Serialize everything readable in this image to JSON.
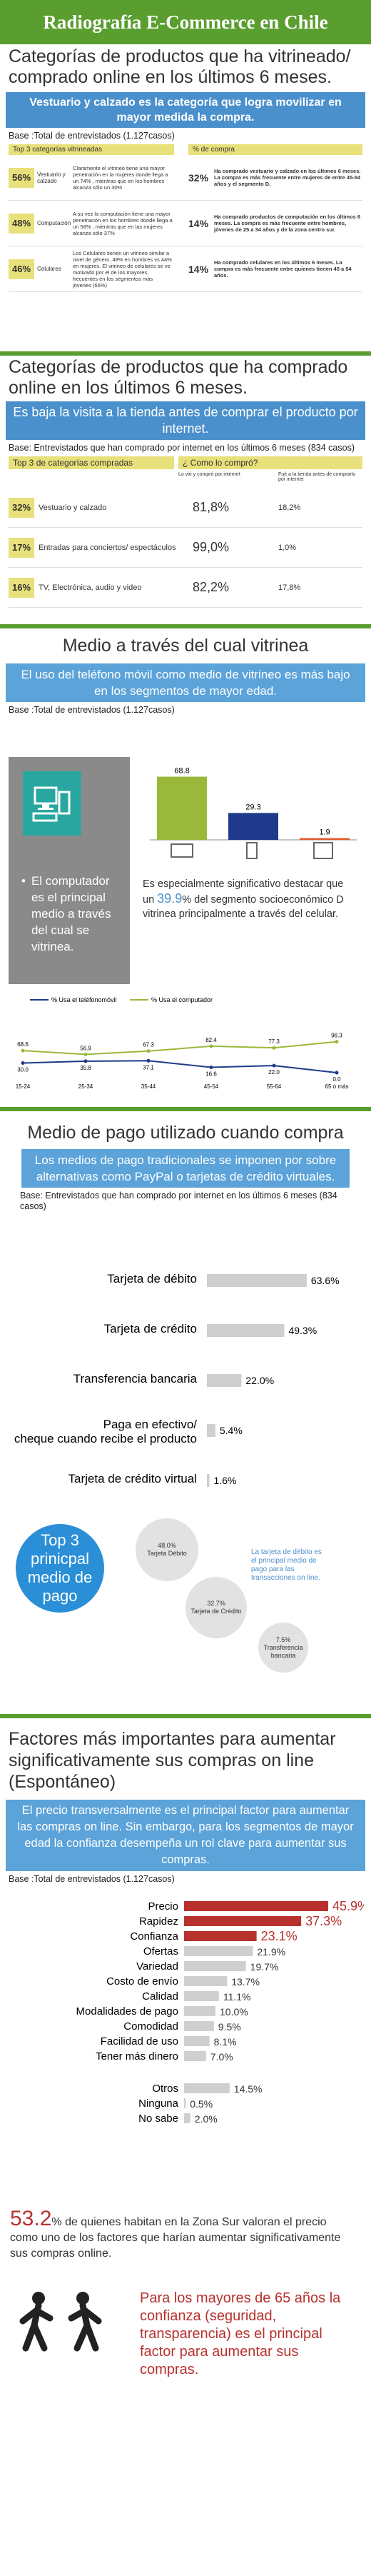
{
  "header": {
    "title": "Radiografía E-Commerce en Chile"
  },
  "s1": {
    "title": "Categorías de productos que ha vitrineado/ comprado online en los últimos 6 meses.",
    "band": "Vestuario y calzado es la categoría que logra movilizar en mayor medida la compra.",
    "base": "Base :Total de entrevistados (1.127casos)",
    "col1": "Top 3 categorías vitrineadas",
    "col2": "% de compra",
    "rows": [
      {
        "pct": "56%",
        "cat": "Vestuario y calzado",
        "desc": "Claramente el vitrineo tiene una mayor penetración en la mujeres donde llega a un 74% , mientras que en los hombres alcanza sólo un 30%",
        "buy": "32%",
        "buydesc": "Ha comprado vestuario y calzado en los últimos 6 meses. La compra es más frecuente entre mujeres de entre 45-54 años y el segmento D."
      },
      {
        "pct": "48%",
        "cat": "Computación",
        "desc": "A su vez la computación tiene una mayor penetración en los hombres donde llega a un 58% , mientras que en las mujeres alcanza sólo 37%",
        "buy": "14%",
        "buydesc": "Ha comprado productos de computación en los últimos 6 meses. La compra es más frecuente entre hombres, jóvenes de 25 a 34 años y de la zona centro sur."
      },
      {
        "pct": "46%",
        "cat": "Celulares",
        "desc": "Los Celulares tienen un vitrineo similar a nivel de género, 48% en hombres vs 44% en mujeres. El vitrineo de celulares se ve motivado por el de los mayores, frecuentes en los segmentos más jóvenes (66%)",
        "buy": "14%",
        "buydesc": "Ha comprado celulares en los últimos 6 meses. La compra es más frecuente entre quienes tienen 45 a 54 años."
      }
    ]
  },
  "s2": {
    "title": "Categorías de productos que ha comprado online en los últimos 6 meses.",
    "band": "Es baja la visita a la tienda antes de comprar el producto por internet.",
    "base": "Base: Entrevistados que han comprado por internet en los últimos 6 meses (834 casos)",
    "col1": "Top 3 de  categorías compradas",
    "col2": "¿ Como lo compró?",
    "sub1": "Lo vió y compró por internet",
    "sub2": "Fué a la tienda antes de comprarlo por internet",
    "rows": [
      {
        "pct": "32%",
        "cat": "Vestuario y calzado",
        "a": "81,8%",
        "b": "18,2%"
      },
      {
        "pct": "17%",
        "cat": "Entradas para conciertos/ espectáculos",
        "a": "99,0%",
        "b": "1,0%"
      },
      {
        "pct": "16%",
        "cat": "TV, Electrónica, audio y video",
        "a": "82,2%",
        "b": "17,8%"
      }
    ]
  },
  "s3": {
    "title": "Medio a través del cual vitrinea",
    "band": "El uso del teléfono móvil como medio de vitrineo es más bajo en los segmentos de mayor edad.",
    "base": "Base :Total de entrevistados  (1.127casos)",
    "left_text": "El computador es el principal medio a través del cual se vitrinea.",
    "note_pre": "Es especialmente significativo destacar que un ",
    "note_pct": "39.9",
    "note_post": "% del segmento socioeconómico D  vitrinea principalmente  a través del celular."
  },
  "s4": {
    "title": "Medio de pago utilizado cuando compra",
    "band": "Los medios de pago tradicionales se imponen por sobre alternativas como PayPal o tarjetas de crédito virtuales.",
    "base": "Base: Entrevistados que han comprado por internet en los últimos 6 meses (834 casos)",
    "top3": "Top 3 prinicpal medio de pago",
    "bubbles": [
      {
        "pct": "48.0%",
        "label": "Tarjeta Débito"
      },
      {
        "pct": "32.7%",
        "label": "Tarjeta de Crédito"
      },
      {
        "pct": "7.5%",
        "label": "Transferencia bancaria"
      }
    ],
    "bubble_note": "La tarjeta de débito es el principal medio de pago para las transacciones on line."
  },
  "s5": {
    "title": "Factores más importantes para aumentar significativamente sus compras on line (Espontáneo)",
    "band": "El precio transversalmente es el principal factor para aumentar las compras on line. Sin embargo, para los segmentos de mayor edad la confianza desempeña un rol clave para aumentar sus compras.",
    "base": "Base :Total de entrevistados (1.127casos)",
    "stat_pct": "53.2",
    "stat_text": "% de quienes habitan en la Zona Sur valoran el precio como  uno de los factores que harían aumentar significativamente sus compras online.",
    "final": "Para los mayores de 65 años la confianza (seguridad, transparencia) es el principal factor para aumentar sus compras."
  },
  "chart_data": [
    {
      "type": "bar",
      "categories": [
        "Computador",
        "Celular",
        "Tablet"
      ],
      "values": [
        68.8,
        29.3,
        1.9
      ]
    },
    {
      "type": "line",
      "categories": [
        "15-24",
        "25-34",
        "35-44",
        "45-54",
        "55-64",
        "65 ó más"
      ],
      "series": [
        {
          "name": "% Usa el teléfonomóvil",
          "values": [
            30.0,
            35.8,
            37.1,
            16.6,
            22.0,
            0.0
          ],
          "color": "#1f3a8a"
        },
        {
          "name": "% Usa el computador",
          "values": [
            68.6,
            56.9,
            67.3,
            82.4,
            77.3,
            96.3
          ],
          "color": "#9ab83a"
        }
      ]
    },
    {
      "type": "bar",
      "categories": [
        "Tarjeta de débito",
        "Tarjeta de crédito",
        "Transferencia bancaria",
        "Paga en efectivo/ cheque cuando recibe el producto",
        "Tarjeta de crédito virtual"
      ],
      "values": [
        63.6,
        49.3,
        22.0,
        5.4,
        1.6
      ]
    },
    {
      "type": "bar",
      "categories": [
        "Precio",
        "Rapidez",
        "Confianza",
        "Ofertas",
        "Variedad",
        "Costo de envío",
        "Calidad",
        "Modalidades de pago",
        "Comodidad",
        "Facilidad de uso",
        "Tener más dinero",
        "Otros",
        "Ninguna",
        "No sabe"
      ],
      "values": [
        45.9,
        37.3,
        23.1,
        21.9,
        19.7,
        13.7,
        11.1,
        10.0,
        9.5,
        8.1,
        7.0,
        14.5,
        0.5,
        2.0
      ]
    }
  ]
}
